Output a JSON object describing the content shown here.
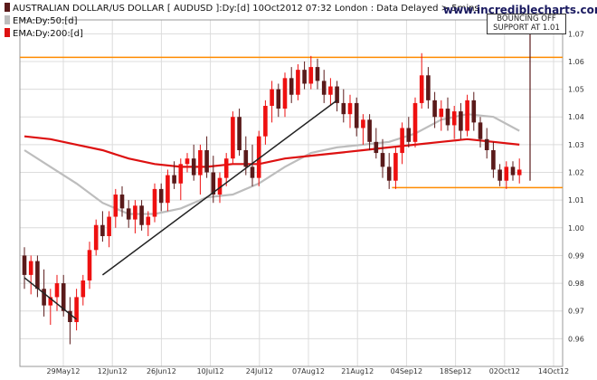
{
  "header": {
    "title": "AUSTRALIAN DOLLAR/US DOLLAR [ AUDUSD ]:Dy:[d]  10Oct2012 07:32 London : Data Delayed > 5mins",
    "ema50_label": "EMA:Dy:50:[d]",
    "ema200_label": "EMA:Dy:200:[d]",
    "site": "www.incrediblecharts.com"
  },
  "annotation": {
    "line1": "BOUNCING OFF",
    "line2": "SUPPORT AT 1.01"
  },
  "colors": {
    "up_candle": "#ee1010",
    "down_candle": "#5a1a1a",
    "ema50": "#bdbdbd",
    "ema200": "#dd1111",
    "support_line": "#ff8c00",
    "trendline": "#222222",
    "grid": "#dcdcdc"
  },
  "chart_data": {
    "type": "candlestick",
    "instrument": "AUDUSD",
    "period": "daily",
    "ylim": [
      0.95,
      1.075
    ],
    "y_ticks": [
      0.96,
      0.97,
      0.98,
      0.99,
      1.0,
      1.01,
      1.02,
      1.03,
      1.04,
      1.05,
      1.06,
      1.07
    ],
    "x_ticks": [
      "29May12",
      "12Jun12",
      "26Jun12",
      "10Jul12",
      "24Jul12",
      "07Aug12",
      "21Aug12",
      "04Sep12",
      "18Sep12",
      "02Oct12",
      "14Oct12"
    ],
    "candles_ohlc": [
      [
        0.99,
        0.993,
        0.978,
        0.983
      ],
      [
        0.983,
        0.99,
        0.976,
        0.988
      ],
      [
        0.988,
        0.99,
        0.975,
        0.978
      ],
      [
        0.978,
        0.985,
        0.968,
        0.972
      ],
      [
        0.972,
        0.978,
        0.965,
        0.975
      ],
      [
        0.975,
        0.983,
        0.97,
        0.98
      ],
      [
        0.98,
        0.983,
        0.968,
        0.97
      ],
      [
        0.97,
        0.975,
        0.958,
        0.966
      ],
      [
        0.966,
        0.978,
        0.963,
        0.975
      ],
      [
        0.975,
        0.983,
        0.972,
        0.981
      ],
      [
        0.981,
        0.995,
        0.978,
        0.992
      ],
      [
        0.992,
        1.003,
        0.99,
        1.001
      ],
      [
        1.001,
        1.006,
        0.995,
        0.997
      ],
      [
        0.997,
        1.006,
        0.993,
        1.004
      ],
      [
        1.004,
        1.014,
        1.0,
        1.012
      ],
      [
        1.012,
        1.015,
        1.004,
        1.007
      ],
      [
        1.007,
        1.01,
        1.0,
        1.003
      ],
      [
        1.003,
        1.01,
        0.998,
        1.008
      ],
      [
        1.008,
        1.01,
        0.999,
        1.001
      ],
      [
        1.001,
        1.006,
        0.997,
        1.004
      ],
      [
        1.004,
        1.016,
        1.002,
        1.014
      ],
      [
        1.014,
        1.016,
        1.006,
        1.009
      ],
      [
        1.009,
        1.021,
        1.006,
        1.019
      ],
      [
        1.019,
        1.024,
        1.014,
        1.016
      ],
      [
        1.016,
        1.025,
        1.01,
        1.023
      ],
      [
        1.023,
        1.027,
        1.02,
        1.025
      ],
      [
        1.025,
        1.03,
        1.017,
        1.019
      ],
      [
        1.019,
        1.03,
        1.012,
        1.028
      ],
      [
        1.028,
        1.033,
        1.018,
        1.02
      ],
      [
        1.02,
        1.026,
        1.009,
        1.012
      ],
      [
        1.012,
        1.02,
        1.009,
        1.018
      ],
      [
        1.018,
        1.027,
        1.015,
        1.025
      ],
      [
        1.025,
        1.042,
        1.023,
        1.04
      ],
      [
        1.04,
        1.043,
        1.026,
        1.028
      ],
      [
        1.028,
        1.033,
        1.019,
        1.022
      ],
      [
        1.022,
        1.03,
        1.015,
        1.018
      ],
      [
        1.018,
        1.035,
        1.015,
        1.033
      ],
      [
        1.033,
        1.046,
        1.03,
        1.044
      ],
      [
        1.044,
        1.053,
        1.038,
        1.05
      ],
      [
        1.05,
        1.052,
        1.04,
        1.043
      ],
      [
        1.043,
        1.056,
        1.04,
        1.054
      ],
      [
        1.054,
        1.058,
        1.045,
        1.048
      ],
      [
        1.048,
        1.059,
        1.046,
        1.057
      ],
      [
        1.057,
        1.06,
        1.05,
        1.052
      ],
      [
        1.052,
        1.062,
        1.05,
        1.058
      ],
      [
        1.058,
        1.061,
        1.05,
        1.053
      ],
      [
        1.053,
        1.057,
        1.045,
        1.048
      ],
      [
        1.048,
        1.054,
        1.044,
        1.051
      ],
      [
        1.051,
        1.053,
        1.042,
        1.045
      ],
      [
        1.045,
        1.05,
        1.038,
        1.041
      ],
      [
        1.041,
        1.048,
        1.036,
        1.045
      ],
      [
        1.045,
        1.047,
        1.033,
        1.036
      ],
      [
        1.036,
        1.041,
        1.03,
        1.039
      ],
      [
        1.039,
        1.041,
        1.028,
        1.031
      ],
      [
        1.031,
        1.036,
        1.025,
        1.027
      ],
      [
        1.027,
        1.032,
        1.018,
        1.022
      ],
      [
        1.022,
        1.027,
        1.014,
        1.017
      ],
      [
        1.017,
        1.029,
        1.014,
        1.027
      ],
      [
        1.027,
        1.038,
        1.023,
        1.036
      ],
      [
        1.036,
        1.04,
        1.029,
        1.031
      ],
      [
        1.031,
        1.047,
        1.029,
        1.045
      ],
      [
        1.045,
        1.063,
        1.043,
        1.055
      ],
      [
        1.055,
        1.058,
        1.043,
        1.046
      ],
      [
        1.046,
        1.049,
        1.036,
        1.04
      ],
      [
        1.04,
        1.046,
        1.035,
        1.043
      ],
      [
        1.043,
        1.047,
        1.035,
        1.037
      ],
      [
        1.037,
        1.044,
        1.032,
        1.042
      ],
      [
        1.042,
        1.045,
        1.032,
        1.035
      ],
      [
        1.035,
        1.048,
        1.033,
        1.046
      ],
      [
        1.046,
        1.049,
        1.035,
        1.038
      ],
      [
        1.038,
        1.04,
        1.029,
        1.032
      ],
      [
        1.032,
        1.036,
        1.025,
        1.028
      ],
      [
        1.028,
        1.031,
        1.018,
        1.021
      ],
      [
        1.021,
        1.023,
        1.015,
        1.017
      ],
      [
        1.017,
        1.024,
        1.014,
        1.022
      ],
      [
        1.022,
        1.024,
        1.017,
        1.019
      ],
      [
        1.019,
        1.025,
        1.016,
        1.021
      ]
    ],
    "ema50": [
      [
        0,
        1.028
      ],
      [
        4,
        1.022
      ],
      [
        8,
        1.016
      ],
      [
        12,
        1.009
      ],
      [
        16,
        1.005
      ],
      [
        20,
        1.005
      ],
      [
        24,
        1.007
      ],
      [
        28,
        1.011
      ],
      [
        32,
        1.012
      ],
      [
        36,
        1.016
      ],
      [
        40,
        1.022
      ],
      [
        44,
        1.027
      ],
      [
        48,
        1.029
      ],
      [
        52,
        1.03
      ],
      [
        56,
        1.031
      ],
      [
        60,
        1.034
      ],
      [
        64,
        1.039
      ],
      [
        68,
        1.041
      ],
      [
        72,
        1.04
      ],
      [
        76,
        1.035
      ]
    ],
    "ema200": [
      [
        0,
        1.033
      ],
      [
        4,
        1.032
      ],
      [
        8,
        1.03
      ],
      [
        12,
        1.028
      ],
      [
        16,
        1.025
      ],
      [
        20,
        1.023
      ],
      [
        24,
        1.022
      ],
      [
        28,
        1.022
      ],
      [
        32,
        1.023
      ],
      [
        36,
        1.023
      ],
      [
        40,
        1.025
      ],
      [
        44,
        1.026
      ],
      [
        48,
        1.027
      ],
      [
        52,
        1.028
      ],
      [
        56,
        1.029
      ],
      [
        60,
        1.03
      ],
      [
        64,
        1.031
      ],
      [
        68,
        1.032
      ],
      [
        72,
        1.031
      ],
      [
        76,
        1.03
      ]
    ],
    "resistance_level": 1.0615,
    "support_level": 1.0145,
    "trendlines": [
      {
        "from": [
          0,
          0.982
        ],
        "to": [
          8,
          0.967
        ]
      },
      {
        "from": [
          12,
          0.983
        ],
        "to": [
          48,
          1.046
        ]
      }
    ]
  }
}
